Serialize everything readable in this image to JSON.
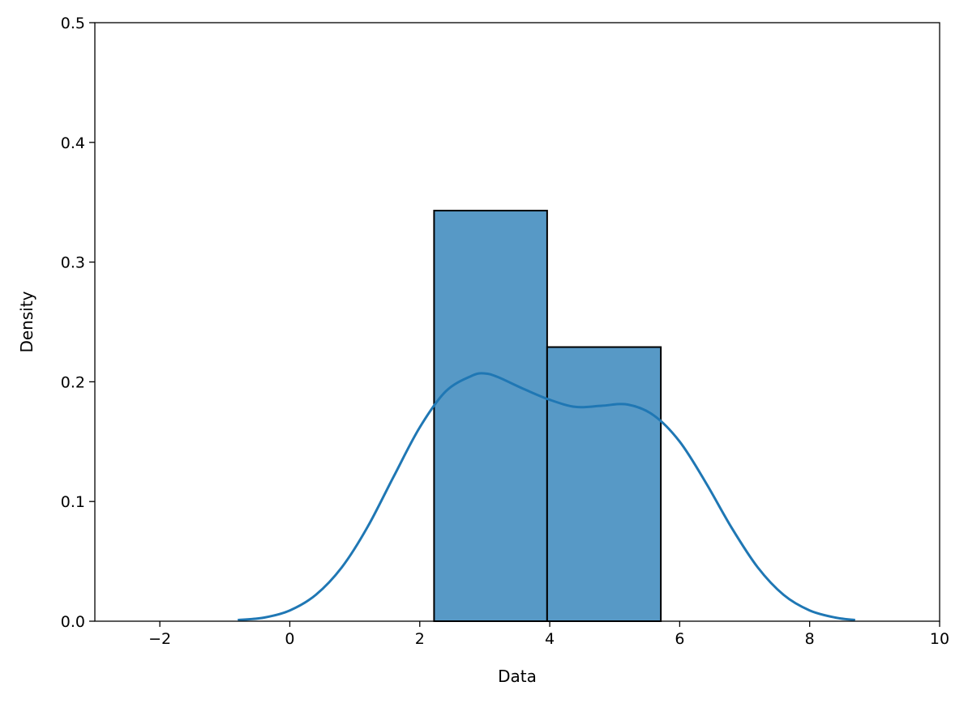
{
  "chart_data": {
    "type": "histogram",
    "title": "",
    "xlabel": "Data",
    "ylabel": "Density",
    "xlim": [
      -3,
      10
    ],
    "ylim": [
      0,
      0.5
    ],
    "xticks": [
      -2,
      0,
      2,
      4,
      6,
      8,
      10
    ],
    "xtick_labels": [
      "−2",
      "0",
      "2",
      "4",
      "6",
      "8",
      "10"
    ],
    "yticks": [
      0.0,
      0.1,
      0.2,
      0.3,
      0.4,
      0.5
    ],
    "ytick_labels": [
      "0.0",
      "0.1",
      "0.2",
      "0.3",
      "0.4",
      "0.5"
    ],
    "grid": false,
    "bins": [
      {
        "x0": 2.22,
        "x1": 3.96,
        "density": 0.343
      },
      {
        "x0": 3.96,
        "x1": 5.71,
        "density": 0.229
      }
    ],
    "kde": {
      "x": [
        -0.8,
        -0.4,
        0.0,
        0.4,
        0.8,
        1.2,
        1.6,
        2.0,
        2.4,
        2.8,
        3.0,
        3.2,
        3.6,
        4.0,
        4.4,
        4.8,
        5.2,
        5.6,
        6.0,
        6.4,
        6.8,
        7.2,
        7.6,
        8.0,
        8.4,
        8.7
      ],
      "y": [
        0.001,
        0.003,
        0.009,
        0.022,
        0.045,
        0.079,
        0.121,
        0.162,
        0.192,
        0.205,
        0.207,
        0.204,
        0.194,
        0.185,
        0.179,
        0.18,
        0.181,
        0.172,
        0.15,
        0.116,
        0.078,
        0.045,
        0.022,
        0.009,
        0.003,
        0.001
      ]
    },
    "colors": {
      "bar_fill": "#5799c6",
      "bar_edge": "#000000",
      "kde_line": "#1f77b4"
    }
  }
}
